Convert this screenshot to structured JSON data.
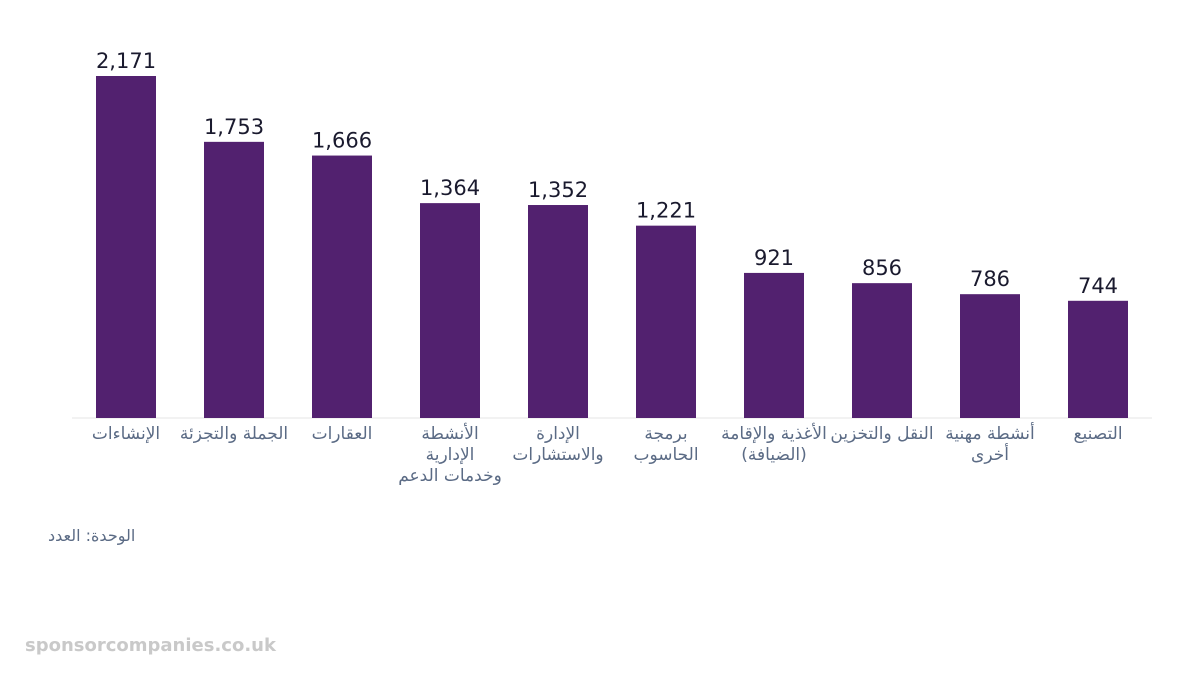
{
  "chart_data": {
    "type": "bar",
    "categories": [
      "الإنشاءات",
      "الجملة والتجزئة",
      "العقارات",
      "الأنشطة الإدارية وخدمات الدعم",
      "الإدارة والاستشارات",
      "برمجة الحاسوب",
      "الأغذية والإقامة (الضيافة)",
      "النقل والتخزين",
      "أنشطة مهنية أخرى",
      "التصنيع"
    ],
    "values": [
      2171,
      1753,
      1666,
      1364,
      1352,
      1221,
      921,
      856,
      786,
      744
    ],
    "value_labels": [
      "2,171",
      "1,753",
      "1,666",
      "1,364",
      "1,352",
      "1,221",
      "921",
      "856",
      "786",
      "744"
    ],
    "ylim": [
      0,
      2171
    ],
    "grid": false,
    "bar_color": "#52216f",
    "title": "",
    "xlabel": "",
    "ylabel": ""
  },
  "unit_note": "الوحدة: العدد",
  "watermark": "sponsorcompanies.co.uk",
  "colors": {
    "label_text": "#5b6b85",
    "value_text": "#1a1a2e",
    "axis_line": "#e6e6e6"
  }
}
